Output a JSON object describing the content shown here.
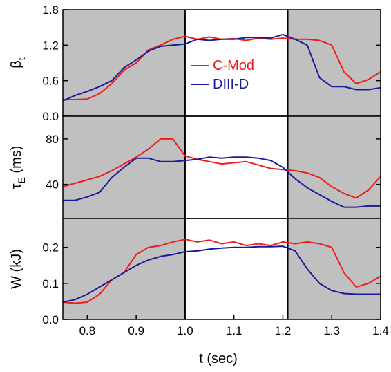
{
  "chart_data": [
    {
      "type": "line",
      "ylabel": "β",
      "ylabel_sub": "t",
      "x": [
        0.75,
        0.775,
        0.8,
        0.825,
        0.85,
        0.875,
        0.9,
        0.925,
        0.95,
        0.975,
        1.0,
        1.025,
        1.05,
        1.075,
        1.1,
        1.125,
        1.15,
        1.175,
        1.2,
        1.225,
        1.25,
        1.275,
        1.3,
        1.325,
        1.35,
        1.375,
        1.4
      ],
      "series": [
        {
          "name": "C-Mod",
          "color": "#ee1c1c",
          "values": [
            0.28,
            0.28,
            0.29,
            0.38,
            0.55,
            0.78,
            0.9,
            1.12,
            1.2,
            1.3,
            1.35,
            1.3,
            1.34,
            1.3,
            1.31,
            1.28,
            1.32,
            1.3,
            1.32,
            1.3,
            1.3,
            1.28,
            1.2,
            0.75,
            0.55,
            0.62,
            0.75
          ]
        },
        {
          "name": "DIII-D",
          "color": "#1a1a9a",
          "values": [
            0.26,
            0.35,
            0.42,
            0.5,
            0.6,
            0.82,
            0.95,
            1.1,
            1.18,
            1.2,
            1.22,
            1.3,
            1.28,
            1.3,
            1.3,
            1.33,
            1.33,
            1.32,
            1.38,
            1.3,
            1.2,
            0.65,
            0.5,
            0.5,
            0.45,
            0.45,
            0.48
          ]
        }
      ],
      "xlim": [
        0.75,
        1.4
      ],
      "ylim": [
        0,
        1.8
      ],
      "yticks": [
        {
          "value": 0,
          "label": "0.0"
        },
        0.6,
        1.2,
        1.8
      ],
      "shaded": [
        [
          0.75,
          1.0
        ],
        [
          1.21,
          1.4
        ]
      ],
      "shade_color": "#c0c0c0",
      "vlines": [
        1.0,
        1.21
      ],
      "legend": "center"
    },
    {
      "type": "line",
      "ylabel": "τ",
      "ylabel_sub": "E",
      "ylabel_after": " (ms)",
      "x": [
        0.75,
        0.775,
        0.8,
        0.825,
        0.85,
        0.875,
        0.9,
        0.925,
        0.95,
        0.975,
        1.0,
        1.025,
        1.05,
        1.075,
        1.1,
        1.125,
        1.15,
        1.175,
        1.2,
        1.225,
        1.25,
        1.275,
        1.3,
        1.325,
        1.35,
        1.375,
        1.4
      ],
      "series": [
        {
          "color": "#ee1c1c",
          "values": [
            38,
            41,
            44,
            47,
            52,
            58,
            64,
            71,
            80,
            80,
            65,
            62,
            60,
            58,
            59,
            60,
            57,
            54,
            53,
            52,
            50,
            46,
            38,
            32,
            28,
            35,
            47
          ]
        },
        {
          "color": "#1a1a9a",
          "values": [
            26,
            26,
            29,
            33,
            46,
            55,
            63,
            63,
            60,
            60,
            61,
            62,
            64,
            63,
            64,
            64,
            63,
            61,
            55,
            45,
            37,
            31,
            25,
            20,
            20,
            21,
            21
          ]
        }
      ],
      "xlim": [
        0.75,
        1.4
      ],
      "ylim": [
        10,
        100
      ],
      "yticks": [
        40,
        80
      ],
      "shaded": [
        [
          0.75,
          1.0
        ],
        [
          1.21,
          1.4
        ]
      ],
      "shade_color": "#c0c0c0",
      "vlines": [
        1.0,
        1.21
      ]
    },
    {
      "type": "line",
      "ylabel": "W (kJ)",
      "xlabel": "t (sec)",
      "x": [
        0.75,
        0.775,
        0.8,
        0.825,
        0.85,
        0.875,
        0.9,
        0.925,
        0.95,
        0.975,
        1.0,
        1.025,
        1.05,
        1.075,
        1.1,
        1.125,
        1.15,
        1.175,
        1.2,
        1.225,
        1.25,
        1.275,
        1.3,
        1.325,
        1.35,
        1.375,
        1.4
      ],
      "series": [
        {
          "color": "#ee1c1c",
          "values": [
            0.048,
            0.045,
            0.048,
            0.07,
            0.11,
            0.13,
            0.18,
            0.2,
            0.205,
            0.215,
            0.222,
            0.215,
            0.22,
            0.21,
            0.215,
            0.205,
            0.21,
            0.205,
            0.215,
            0.21,
            0.215,
            0.21,
            0.2,
            0.13,
            0.09,
            0.1,
            0.12
          ]
        },
        {
          "color": "#1a1a9a",
          "values": [
            0.048,
            0.055,
            0.07,
            0.09,
            0.11,
            0.13,
            0.15,
            0.165,
            0.175,
            0.18,
            0.188,
            0.19,
            0.195,
            0.198,
            0.2,
            0.2,
            0.202,
            0.202,
            0.203,
            0.19,
            0.14,
            0.1,
            0.08,
            0.072,
            0.07,
            0.07,
            0.07
          ]
        }
      ],
      "xlim": [
        0.75,
        1.4
      ],
      "ylim": [
        0,
        0.28
      ],
      "yticks": [
        {
          "value": 0,
          "label": "0.0"
        },
        0.1,
        0.2
      ],
      "xticks": [
        0.8,
        0.9,
        {
          "value": 1,
          "label": "1.0"
        },
        1.1,
        1.2,
        1.3,
        1.4
      ],
      "shaded": [
        [
          0.75,
          1.0
        ],
        [
          1.21,
          1.4
        ]
      ],
      "shade_color": "#c0c0c0",
      "vlines": [
        1.0,
        1.21
      ]
    }
  ]
}
